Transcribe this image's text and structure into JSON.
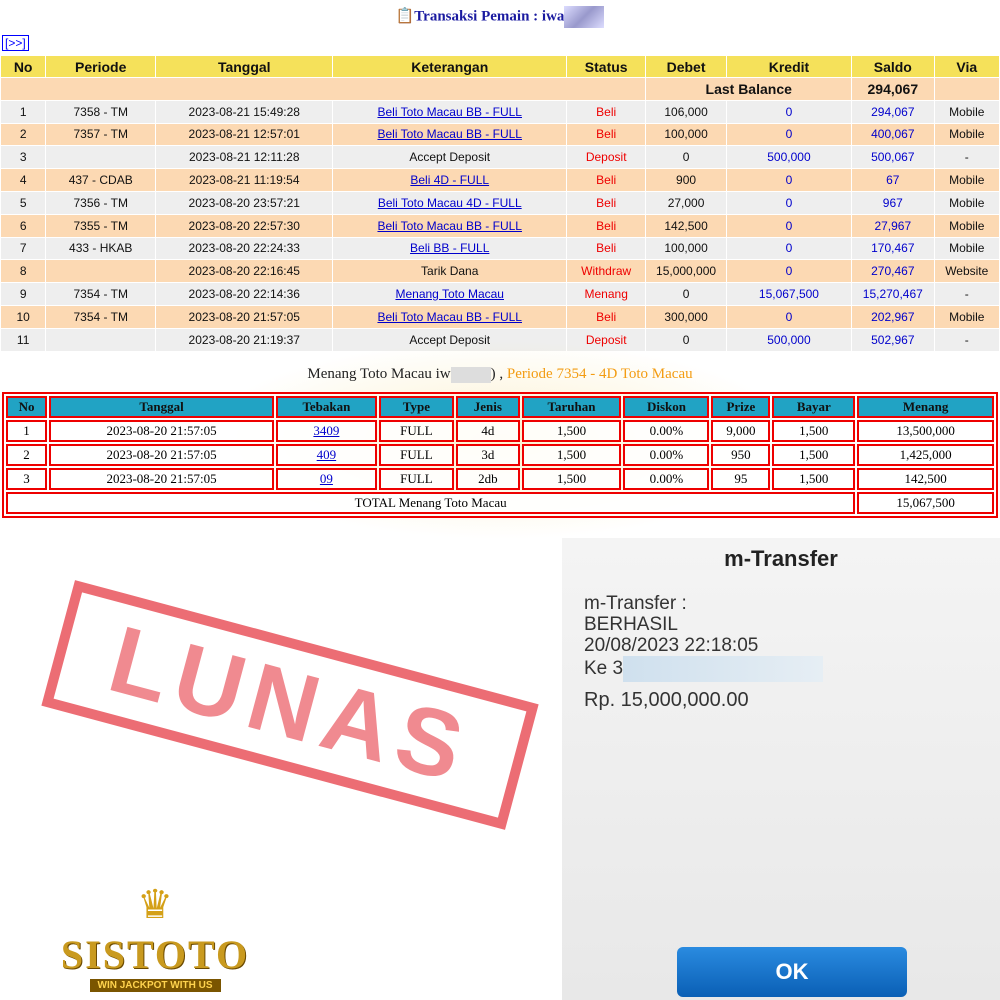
{
  "title": "Transaksi  Pemain : iwa",
  "nav": "[>>]",
  "t1": {
    "headers": [
      "No",
      "Periode",
      "Tanggal",
      "Keterangan",
      "Status",
      "Debet",
      "Kredit",
      "Saldo",
      "Via"
    ],
    "last_balance_label": "Last Balance",
    "last_balance": "294,067",
    "rows": [
      [
        "1",
        "7358 - TM",
        "2023-08-21 15:49:28",
        "Beli Toto Macau BB - FULL",
        "Beli",
        "106,000",
        "0",
        "294,067",
        "Mobile"
      ],
      [
        "2",
        "7357 - TM",
        "2023-08-21 12:57:01",
        "Beli Toto Macau BB - FULL",
        "Beli",
        "100,000",
        "0",
        "400,067",
        "Mobile"
      ],
      [
        "3",
        "",
        "2023-08-21 12:11:28",
        "Accept Deposit",
        "Deposit",
        "0",
        "500,000",
        "500,067",
        "-"
      ],
      [
        "4",
        "437 - CDAB",
        "2023-08-21 11:19:54",
        "Beli 4D - FULL",
        "Beli",
        "900",
        "0",
        "67",
        "Mobile"
      ],
      [
        "5",
        "7356 - TM",
        "2023-08-20 23:57:21",
        "Beli Toto Macau 4D - FULL",
        "Beli",
        "27,000",
        "0",
        "967",
        "Mobile"
      ],
      [
        "6",
        "7355 - TM",
        "2023-08-20 22:57:30",
        "Beli Toto Macau BB - FULL",
        "Beli",
        "142,500",
        "0",
        "27,967",
        "Mobile"
      ],
      [
        "7",
        "433 - HKAB",
        "2023-08-20 22:24:33",
        "Beli BB - FULL",
        "Beli",
        "100,000",
        "0",
        "170,467",
        "Mobile"
      ],
      [
        "8",
        "",
        "2023-08-20 22:16:45",
        "Tarik Dana",
        "Withdraw",
        "15,000,000",
        "0",
        "270,467",
        "Website"
      ],
      [
        "9",
        "7354 - TM",
        "2023-08-20 22:14:36",
        "Menang Toto Macau",
        "Menang",
        "0",
        "15,067,500",
        "15,270,467",
        "-"
      ],
      [
        "10",
        "7354 - TM",
        "2023-08-20 21:57:05",
        "Beli Toto Macau BB - FULL",
        "Beli",
        "300,000",
        "0",
        "202,967",
        "Mobile"
      ],
      [
        "11",
        "",
        "2023-08-20 21:19:37",
        "Accept Deposit",
        "Deposit",
        "0",
        "500,000",
        "502,967",
        "-"
      ]
    ]
  },
  "sub": {
    "text": "Menang Toto Macau iw",
    "tail": ") ,",
    "periode": "Periode 7354 - 4D Toto Macau"
  },
  "t2": {
    "headers": [
      "No",
      "Tanggal",
      "Tebakan",
      "Type",
      "Jenis",
      "Taruhan",
      "Diskon",
      "Prize",
      "Bayar",
      "Menang"
    ],
    "rows": [
      [
        "1",
        "2023-08-20 21:57:05",
        "3409",
        "FULL",
        "4d",
        "1,500",
        "0.00%",
        "9,000",
        "1,500",
        "13,500,000"
      ],
      [
        "2",
        "2023-08-20 21:57:05",
        "409",
        "FULL",
        "3d",
        "1,500",
        "0.00%",
        "950",
        "1,500",
        "1,425,000"
      ],
      [
        "3",
        "2023-08-20 21:57:05",
        "09",
        "FULL",
        "2db",
        "1,500",
        "0.00%",
        "95",
        "1,500",
        "142,500"
      ]
    ],
    "total_label": "TOTAL  Menang Toto Macau",
    "total": "15,067,500"
  },
  "phone": {
    "header": "m-Transfer",
    "l1": "m-Transfer :",
    "l2": "BERHASIL",
    "l3": "20/08/2023 22:18:05",
    "l4": "Ke 3",
    "l5": "Rp. 15,000,000.00",
    "ok": "OK"
  },
  "stamp": "LUNAS",
  "logo": {
    "name": "SISTOTO",
    "tagline": "WIN JACKPOT WITH US"
  }
}
